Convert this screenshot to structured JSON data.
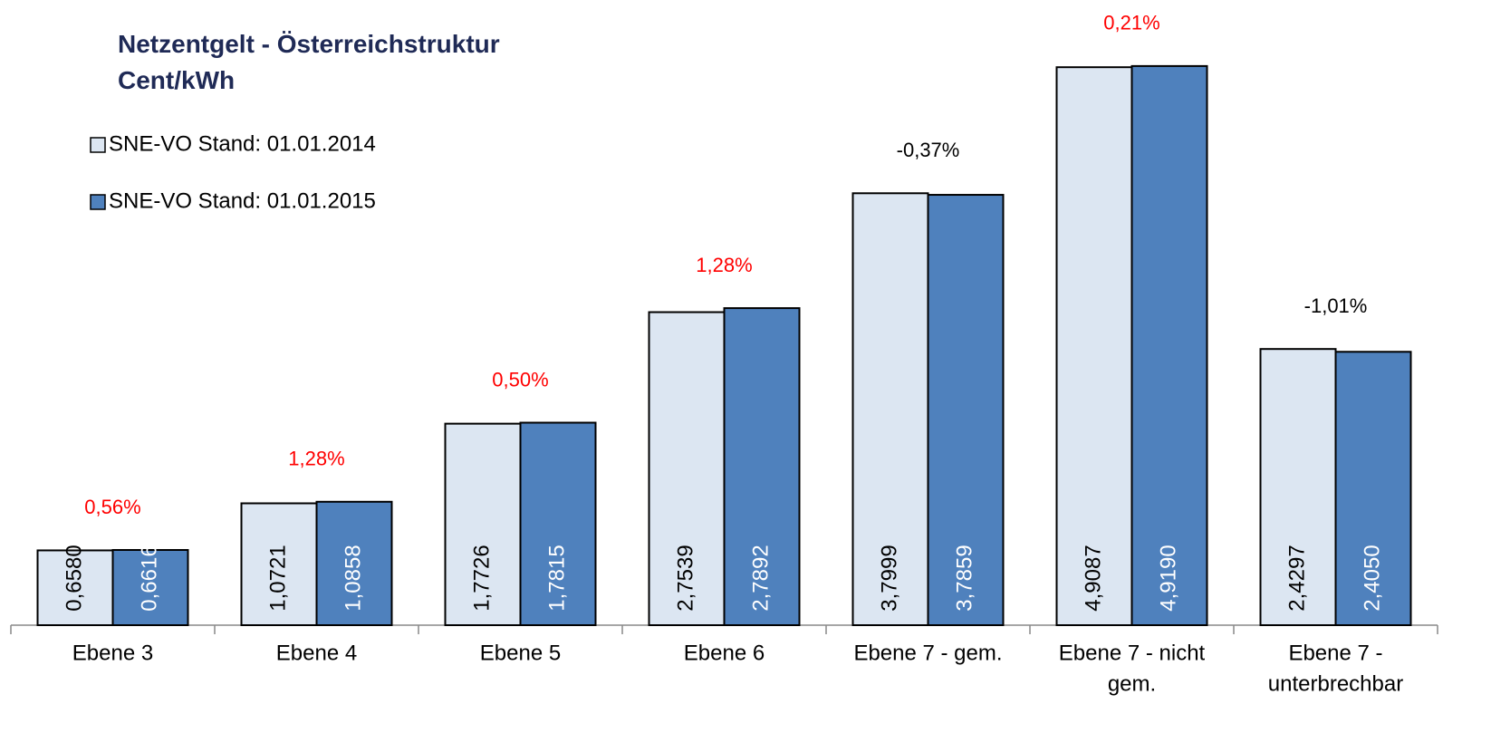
{
  "chart_data": {
    "type": "bar",
    "title": [
      "Netzentgelt  - Österreichstruktur",
      "Cent/kWh"
    ],
    "categories": [
      [
        "Ebene 3"
      ],
      [
        "Ebene 4"
      ],
      [
        "Ebene 5"
      ],
      [
        "Ebene 6"
      ],
      [
        "Ebene 7 - gem."
      ],
      [
        "Ebene 7 - nicht",
        "gem."
      ],
      [
        "Ebene 7 -",
        "unterbrechbar"
      ]
    ],
    "series": [
      {
        "name": "SNE-VO Stand: 01.01.2014",
        "color": "#dce6f2",
        "values": [
          0.658,
          1.0721,
          1.7726,
          2.7539,
          3.7999,
          4.9087,
          2.4297
        ],
        "value_labels": [
          "0,6580",
          "1,0721",
          "1,7726",
          "2,7539",
          "3,7999",
          "4,9087",
          "2,4297"
        ]
      },
      {
        "name": "SNE-VO Stand: 01.01.2015",
        "color": "#4f81bd",
        "values": [
          0.6616,
          1.0858,
          1.7815,
          2.7892,
          3.7859,
          4.919,
          2.405
        ],
        "value_labels": [
          "0,6616",
          "1,0858",
          "1,7815",
          "2,7892",
          "3,7859",
          "4,9190",
          "2,4050"
        ]
      }
    ],
    "annotations": [
      {
        "label": "0,56%",
        "color": "#ff0000"
      },
      {
        "label": "1,28%",
        "color": "#ff0000"
      },
      {
        "label": "0,50%",
        "color": "#ff0000"
      },
      {
        "label": "1,28%",
        "color": "#ff0000"
      },
      {
        "label": "-0,37%",
        "color": "#000000"
      },
      {
        "label": "0,21%",
        "color": "#ff0000"
      },
      {
        "label": "-1,01%",
        "color": "#000000"
      }
    ],
    "ylim": [
      0,
      5.5
    ],
    "legend": "upper left"
  }
}
